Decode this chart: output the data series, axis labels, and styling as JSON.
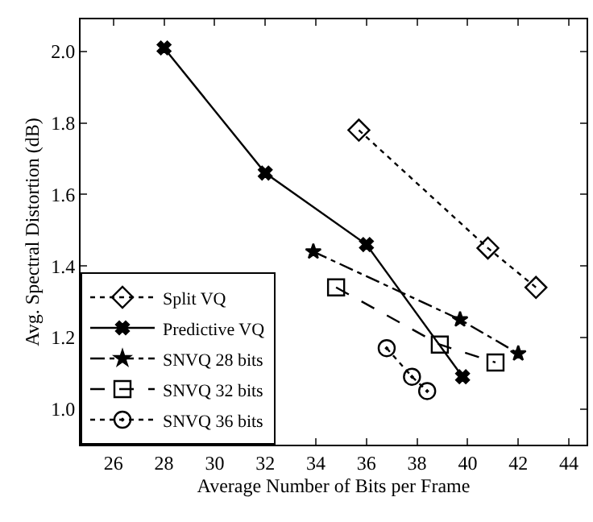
{
  "chart_data": {
    "type": "line",
    "xlabel": "Average Number of Bits per Frame",
    "ylabel": "Avg. Spectral Distortion (dB)",
    "xlim": [
      24.7,
      44.7
    ],
    "xticks": [
      26,
      28,
      30,
      32,
      34,
      36,
      38,
      40,
      42,
      44
    ],
    "ylim": [
      0.9,
      2.09
    ],
    "yticks": [
      {
        "value": 1.0,
        "label": "1.0"
      },
      1.2,
      1.4,
      1.6,
      1.8,
      {
        "value": 2.0,
        "label": "2.0"
      }
    ],
    "grid": false,
    "legend": "bottom left",
    "series": [
      {
        "name": "Split VQ",
        "color": "#000000",
        "marker": "diamond",
        "line_style": "dotted",
        "x": [
          35.7,
          40.8,
          42.7
        ],
        "values": [
          1.78,
          1.45,
          1.34
        ]
      },
      {
        "name": "Predictive VQ",
        "color": "#000000",
        "marker": "cross",
        "line_style": "solid",
        "x": [
          28,
          32,
          36,
          39.8
        ],
        "values": [
          2.01,
          1.66,
          1.46,
          1.09
        ]
      },
      {
        "name": "SNVQ 28 bits",
        "color": "#000000",
        "marker": "star",
        "line_style": "dashdot",
        "x": [
          33.9,
          39.7,
          42
        ],
        "values": [
          1.44,
          1.25,
          1.155
        ]
      },
      {
        "name": "SNVQ 32 bits",
        "color": "#000000",
        "marker": "square",
        "line_style": "dashed",
        "x": [
          34.8,
          38.9,
          41.1
        ],
        "values": [
          1.34,
          1.18,
          1.13
        ]
      },
      {
        "name": "SNVQ 36 bits",
        "color": "#000000",
        "marker": "circle",
        "line_style": "dotted",
        "x": [
          36.8,
          37.8,
          38.4
        ],
        "values": [
          1.17,
          1.09,
          1.05
        ]
      }
    ]
  }
}
